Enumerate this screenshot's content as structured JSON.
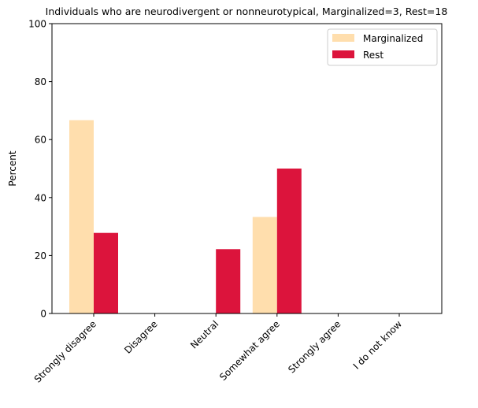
{
  "chart_data": {
    "type": "bar",
    "title": "Individuals who are neurodivergent or nonneurotypical, Marginalized=3, Rest=18",
    "xlabel": "",
    "ylabel": "Percent",
    "ylim": [
      0,
      100
    ],
    "yticks": [
      0,
      20,
      40,
      60,
      80,
      100
    ],
    "categories": [
      "Strongly disagree",
      "Disagree",
      "Neutral",
      "Somewhat agree",
      "Strongly agree",
      "I do not know"
    ],
    "series": [
      {
        "name": "Marginalized",
        "color": "#FFDEAD",
        "values": [
          66.7,
          0,
          0,
          33.3,
          0,
          0
        ]
      },
      {
        "name": "Rest",
        "color": "#DC143C",
        "values": [
          27.8,
          0,
          22.2,
          50.0,
          0,
          0
        ]
      }
    ],
    "grid": false,
    "legend": "top-right"
  }
}
